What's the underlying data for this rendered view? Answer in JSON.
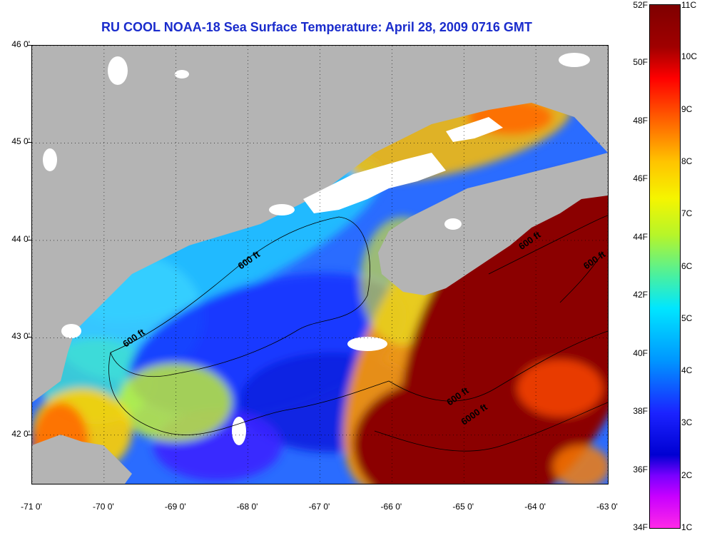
{
  "title": "RU COOL  NOAA-18  Sea Surface Temperature:  April 28, 2009 0716 GMT",
  "map": {
    "lat_range": [
      41.5,
      46.0
    ],
    "lon_range": [
      -71.0,
      -63.0
    ],
    "lat_labels": [
      "46 0'",
      "45 0'",
      "44 0'",
      "43 0'",
      "42 0'"
    ],
    "lat_values": [
      46,
      45,
      44,
      43,
      42
    ],
    "lon_labels": [
      "-71 0'",
      "-70 0'",
      "-69 0'",
      "-68 0'",
      "-67 0'",
      "-66 0'",
      "-65 0'",
      "-64 0'",
      "-63 0'"
    ],
    "lon_values": [
      -71,
      -70,
      -69,
      -68,
      -67,
      -66,
      -65,
      -64,
      -63
    ],
    "contour_labels": [
      {
        "text": "600 ft",
        "lon": -68.1,
        "lat": 43.7
      },
      {
        "text": "600 ft",
        "lon": -69.7,
        "lat": 42.9
      },
      {
        "text": "600 ft",
        "lon": -64.2,
        "lat": 43.9
      },
      {
        "text": "600 ft",
        "lon": -63.3,
        "lat": 43.7
      },
      {
        "text": "600 ft",
        "lon": -65.2,
        "lat": 42.3
      },
      {
        "text": "6000 ft",
        "lon": -65.0,
        "lat": 42.1
      }
    ],
    "colors": {
      "land": "#b4b4b4",
      "cloud": "#ffffff",
      "warm": "#8b0000",
      "cold": "#1e3cff"
    }
  },
  "colorbar": {
    "fahrenheit_labels": [
      "52F",
      "50F",
      "48F",
      "46F",
      "44F",
      "42F",
      "40F",
      "38F",
      "36F",
      "34F"
    ],
    "fahrenheit_values": [
      52,
      50,
      48,
      46,
      44,
      42,
      40,
      38,
      36,
      34
    ],
    "celsius_labels": [
      "11C",
      "10C",
      "9C",
      "8C",
      "7C",
      "6C",
      "5C",
      "4C",
      "3C",
      "2C",
      "1C"
    ],
    "celsius_values": [
      11,
      10,
      9,
      8,
      7,
      6,
      5,
      4,
      3,
      2,
      1
    ]
  }
}
